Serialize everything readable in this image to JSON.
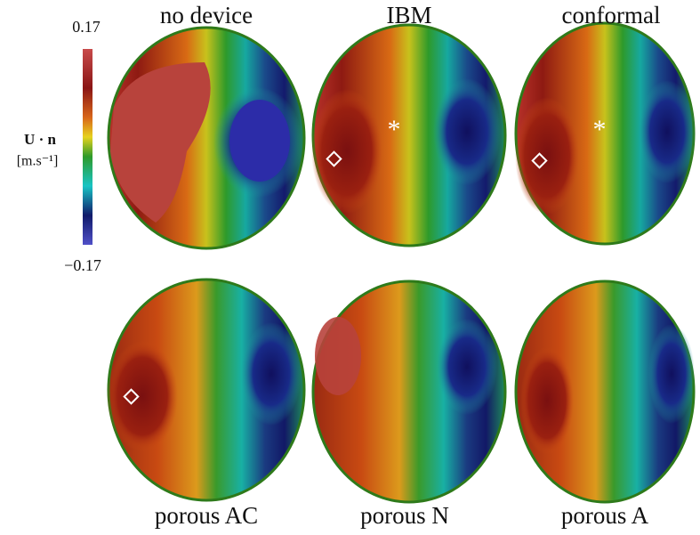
{
  "colorbar": {
    "max_label": "0.17",
    "min_label": "−0.17",
    "quantity": "U · n",
    "unit": "[m.s⁻¹]"
  },
  "panels": [
    {
      "title": "no device"
    },
    {
      "title": "IBM"
    },
    {
      "title": "conformal"
    },
    {
      "title": "porous AC"
    },
    {
      "title": "porous N"
    },
    {
      "title": "porous A"
    }
  ]
}
